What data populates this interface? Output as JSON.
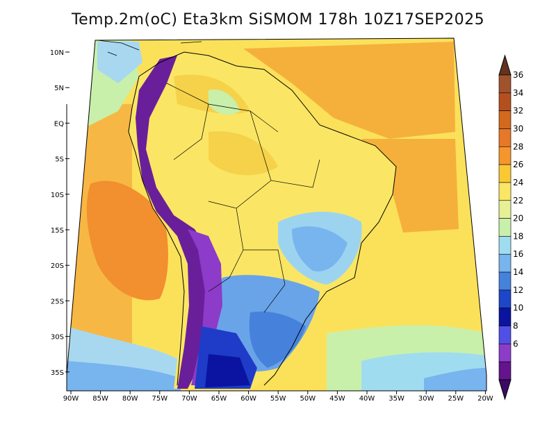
{
  "title": "Temp.2m(oC) Eta3km SiSMOM 178h 10Z17SEP2025",
  "lat_ticks": [
    "10N",
    "5N",
    "EQ",
    "5S",
    "10S",
    "15S",
    "20S",
    "25S",
    "30S",
    "35S"
  ],
  "lon_ticks": [
    "90W",
    "85W",
    "80W",
    "75W",
    "70W",
    "65W",
    "60W",
    "55W",
    "50W",
    "45W",
    "40W",
    "35W",
    "30W",
    "25W",
    "20W"
  ],
  "colorbar": {
    "labels": [
      "36",
      "34",
      "32",
      "30",
      "28",
      "26",
      "24",
      "22",
      "20",
      "18",
      "16",
      "14",
      "12",
      "10",
      "8",
      "6"
    ],
    "colors": [
      "#a0522d",
      "#b4501e",
      "#d2691e",
      "#e67828",
      "#f5962d",
      "#fac832",
      "#fae664",
      "#e6f096",
      "#c8f0aa",
      "#a0dcf0",
      "#78b4ee",
      "#4682dc",
      "#1e46c8",
      "#0a14a0",
      "#5050e6",
      "#8c3cc8",
      "#64148c"
    ],
    "below_color": "#3c0a64",
    "above_color": "#64321e"
  },
  "regions": {
    "ocean_warm_atlantic": "#fbe15a",
    "ocean_warm_pacific": "#f7b744",
    "ocean_hot": "#f28f2e",
    "ocean_cool": "#a8d8f0",
    "amazon": "#fae664",
    "highland": "#9cd4f0",
    "south": "#6aa4e8",
    "andes": "#6a1f9a",
    "patagonia": "#1e3cc8"
  }
}
